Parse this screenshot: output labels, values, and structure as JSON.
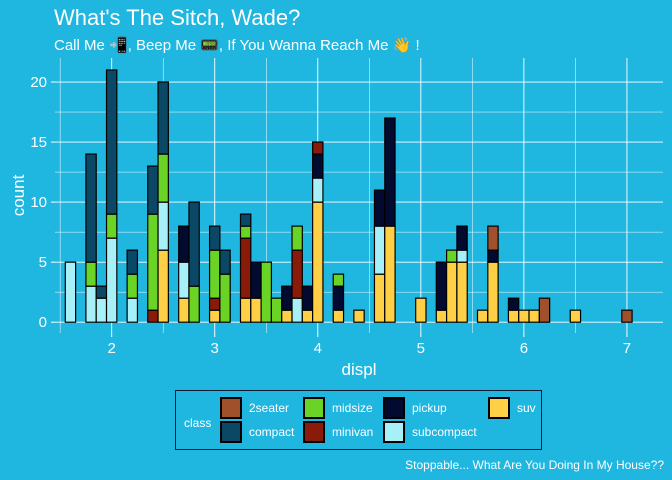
{
  "title": "What's The Sitch, Wade?",
  "subtitle": "Call Me 📲, Beep Me 📟,  If You Wanna Reach Me 👋 !",
  "caption": "Stoppable... What Are You Doing In My House??",
  "colors": {
    "background": "#1fb6e0",
    "grid": "#ffffff",
    "axis_text": "#ffffff"
  },
  "legend": {
    "title": "class",
    "items": [
      {
        "label": "2seater",
        "color": "#a0502a"
      },
      {
        "label": "compact",
        "color": "#0a4866"
      },
      {
        "label": "midsize",
        "color": "#6ad426"
      },
      {
        "label": "minivan",
        "color": "#8a1b0a"
      },
      {
        "label": "pickup",
        "color": "#020a30"
      },
      {
        "label": "subcompact",
        "color": "#a8f0f8"
      },
      {
        "label": "suv",
        "color": "#ffd045"
      }
    ]
  },
  "chart_data": {
    "type": "bar",
    "stacked": true,
    "xlabel": "displ",
    "ylabel": "count",
    "xlim": [
      1.45,
      7.35
    ],
    "ylim": [
      -0.9,
      22.0
    ],
    "xticks": [
      2,
      3,
      4,
      5,
      6,
      7
    ],
    "yticks": [
      0,
      5,
      10,
      15,
      20
    ],
    "bin_width": 0.1,
    "grid": true,
    "legend_position": "bottom",
    "series_order": [
      "suv",
      "subcompact",
      "pickup",
      "minivan",
      "midsize",
      "compact",
      "2seater"
    ],
    "bins": [
      {
        "x": 1.6,
        "counts": {
          "subcompact": 5
        }
      },
      {
        "x": 1.8,
        "counts": {
          "subcompact": 3,
          "midsize": 2,
          "compact": 9
        }
      },
      {
        "x": 1.9,
        "counts": {
          "subcompact": 2,
          "compact": 1
        }
      },
      {
        "x": 2.0,
        "counts": {
          "subcompact": 7,
          "midsize": 2,
          "compact": 12
        }
      },
      {
        "x": 2.2,
        "counts": {
          "subcompact": 2,
          "midsize": 2,
          "compact": 2
        }
      },
      {
        "x": 2.4,
        "counts": {
          "minivan": 1,
          "midsize": 8,
          "compact": 4
        }
      },
      {
        "x": 2.5,
        "counts": {
          "suv": 6,
          "subcompact": 4,
          "midsize": 4,
          "compact": 6
        }
      },
      {
        "x": 2.7,
        "counts": {
          "suv": 2,
          "subcompact": 3,
          "pickup": 3
        }
      },
      {
        "x": 2.8,
        "counts": {
          "midsize": 3,
          "compact": 7
        }
      },
      {
        "x": 3.0,
        "counts": {
          "suv": 1,
          "minivan": 1,
          "midsize": 4,
          "compact": 2
        }
      },
      {
        "x": 3.1,
        "counts": {
          "midsize": 4,
          "compact": 2
        }
      },
      {
        "x": 3.3,
        "counts": {
          "suv": 2,
          "minivan": 5,
          "midsize": 1,
          "compact": 1
        }
      },
      {
        "x": 3.4,
        "counts": {
          "suv": 2,
          "pickup": 3
        }
      },
      {
        "x": 3.5,
        "counts": {
          "midsize": 5
        }
      },
      {
        "x": 3.6,
        "counts": {
          "midsize": 2
        }
      },
      {
        "x": 3.7,
        "counts": {
          "suv": 1,
          "pickup": 2
        }
      },
      {
        "x": 3.8,
        "counts": {
          "subcompact": 2,
          "minivan": 4,
          "midsize": 2
        }
      },
      {
        "x": 3.9,
        "counts": {
          "suv": 1,
          "pickup": 2
        }
      },
      {
        "x": 4.0,
        "counts": {
          "suv": 10,
          "subcompact": 2,
          "pickup": 2,
          "minivan": 1
        }
      },
      {
        "x": 4.2,
        "counts": {
          "suv": 1,
          "pickup": 2,
          "midsize": 1
        }
      },
      {
        "x": 4.4,
        "counts": {
          "suv": 1
        }
      },
      {
        "x": 4.6,
        "counts": {
          "suv": 4,
          "subcompact": 4,
          "pickup": 3
        }
      },
      {
        "x": 4.7,
        "counts": {
          "suv": 8,
          "pickup": 9
        }
      },
      {
        "x": 5.0,
        "counts": {
          "suv": 2
        }
      },
      {
        "x": 5.2,
        "counts": {
          "suv": 1,
          "pickup": 4
        }
      },
      {
        "x": 5.3,
        "counts": {
          "suv": 5,
          "midsize": 1
        }
      },
      {
        "x": 5.4,
        "counts": {
          "suv": 5,
          "subcompact": 1,
          "pickup": 2
        }
      },
      {
        "x": 5.6,
        "counts": {
          "suv": 1
        }
      },
      {
        "x": 5.7,
        "counts": {
          "suv": 5,
          "pickup": 1,
          "2seater": 2
        }
      },
      {
        "x": 5.9,
        "counts": {
          "suv": 1,
          "pickup": 1
        }
      },
      {
        "x": 6.0,
        "counts": {
          "suv": 1
        }
      },
      {
        "x": 6.1,
        "counts": {
          "suv": 1
        }
      },
      {
        "x": 6.2,
        "counts": {
          "2seater": 2
        }
      },
      {
        "x": 6.5,
        "counts": {
          "suv": 1
        }
      },
      {
        "x": 7.0,
        "counts": {
          "2seater": 1
        }
      }
    ]
  }
}
